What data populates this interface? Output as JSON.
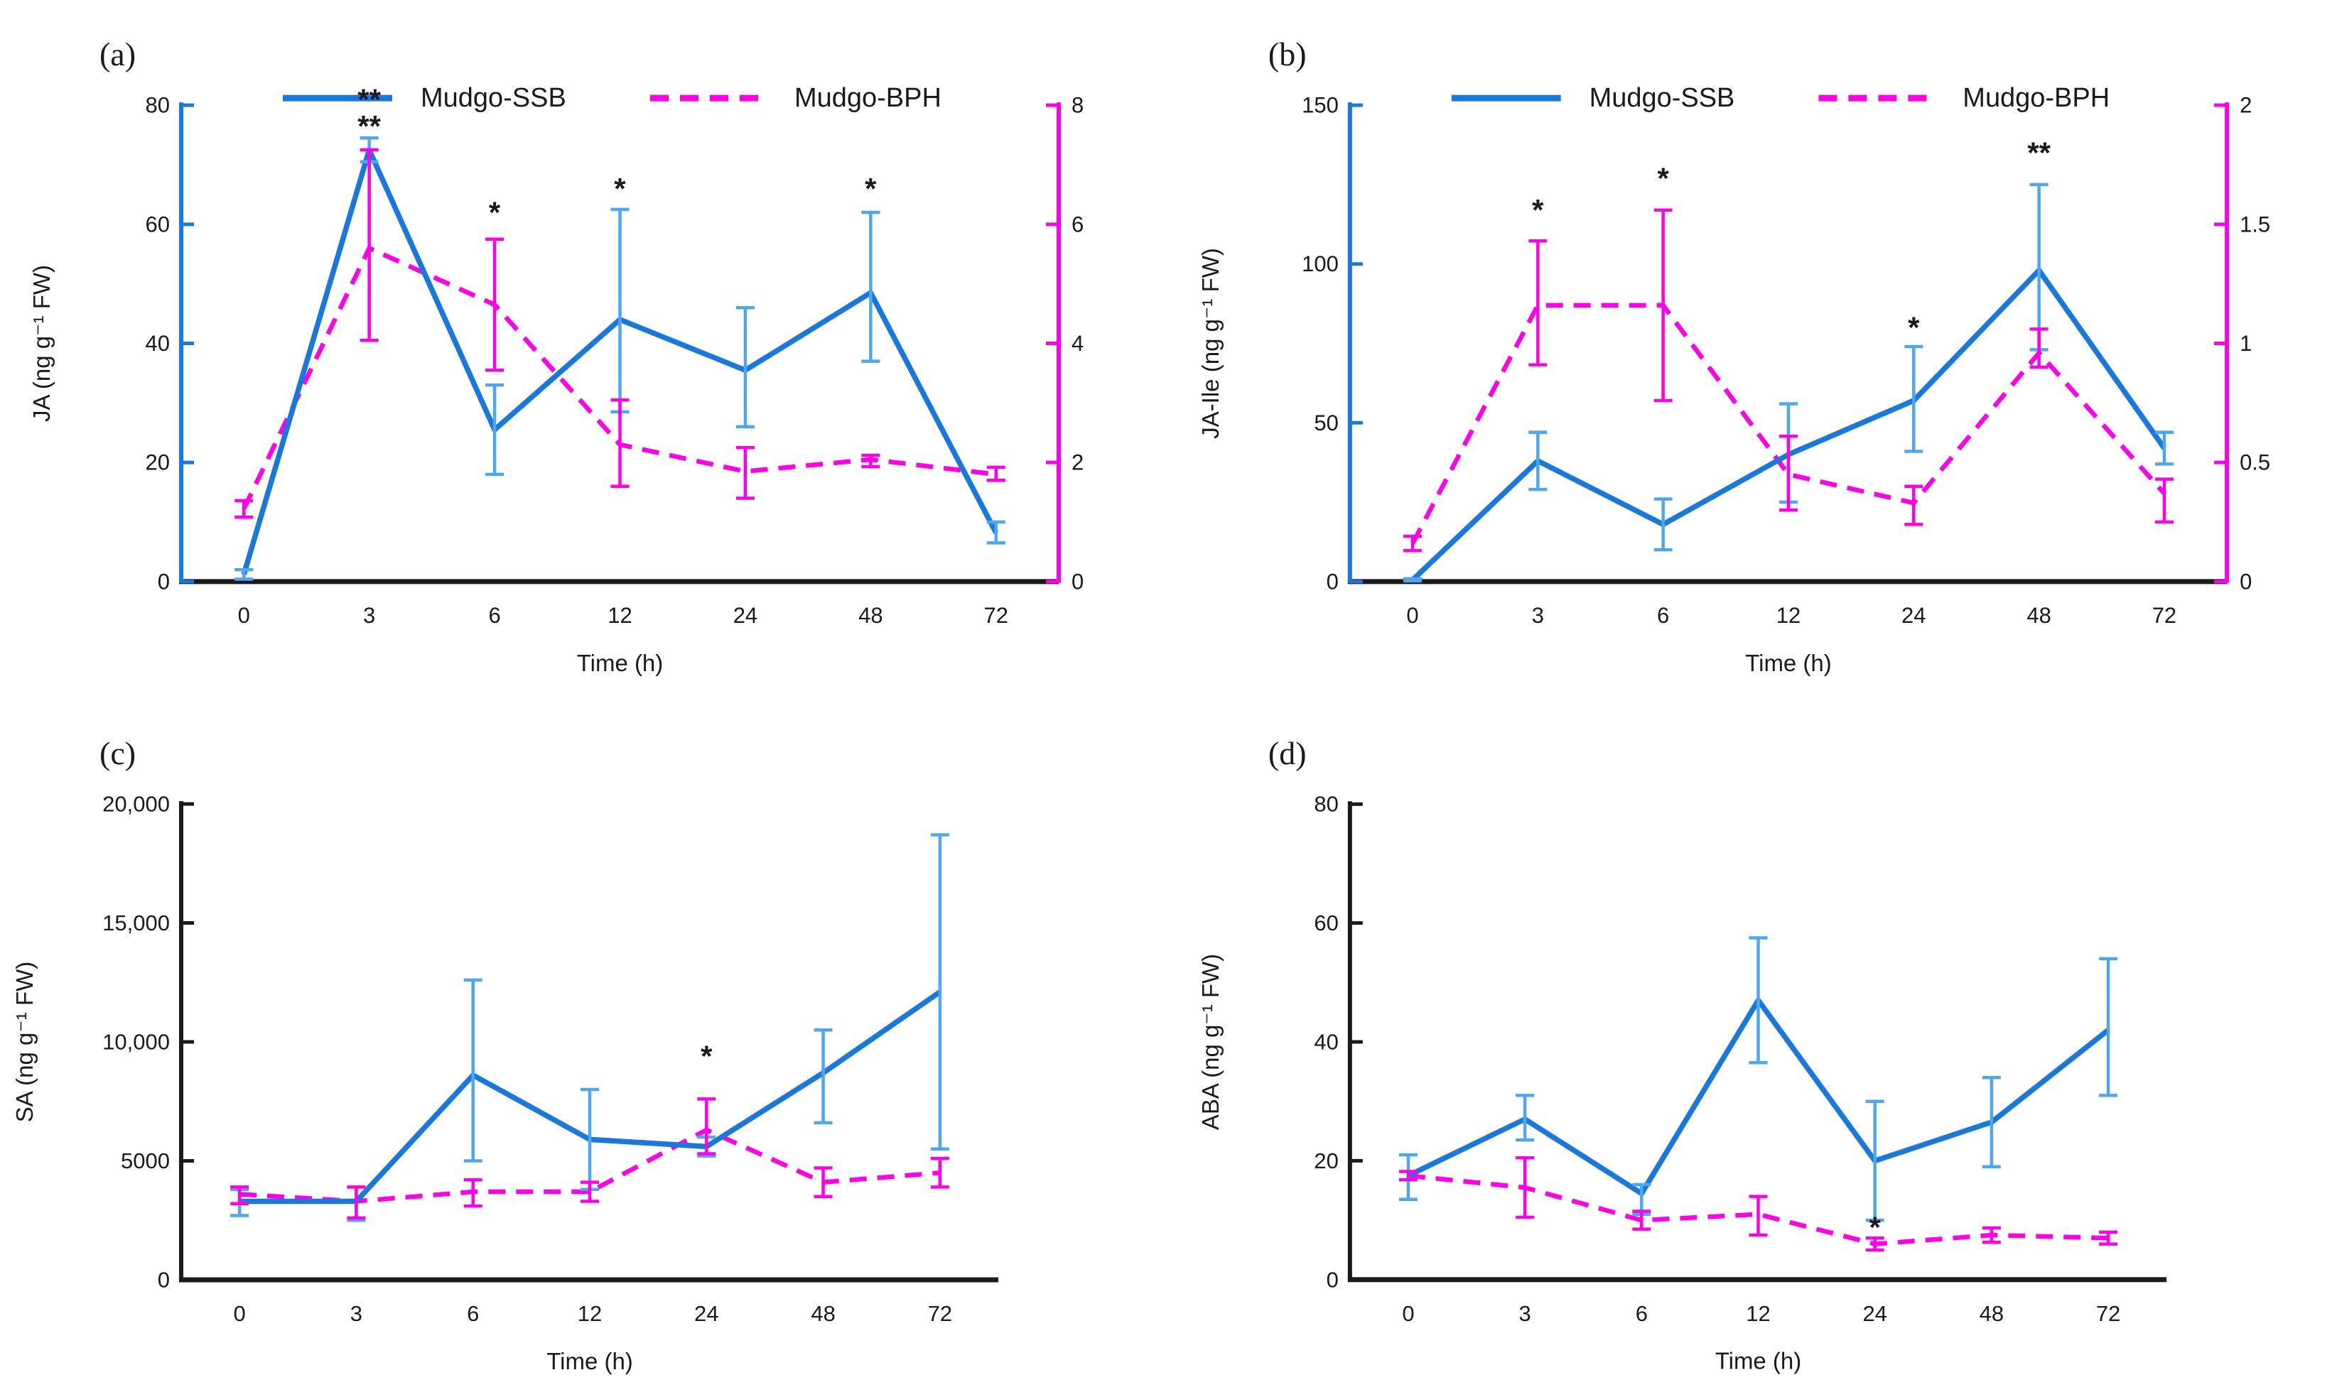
{
  "figure": {
    "description": "Four-panel phytohormone time-course figure",
    "panel_letters": [
      "(a)",
      "(b)",
      "(c)",
      "(d)"
    ]
  },
  "legend": {
    "items": [
      {
        "id": "ssb",
        "label": "Mudgo-SSB",
        "style": "solid"
      },
      {
        "id": "bph",
        "label": "Mudgo-BPH",
        "style": "dashed"
      }
    ]
  },
  "colors": {
    "ssb": "#1878DC",
    "ssb_err": "#4FA6F0",
    "bph": "#FF00E6",
    "bph_err": "#FF00E6",
    "green_star": "#00B050",
    "axis": "#1a1a1a",
    "text": "#1a1a1a"
  },
  "chart_data": [
    {
      "type": "line",
      "panel_label": "(a)",
      "ylabel": "JA (ng g⁻¹ FW)",
      "xlabel": "Time (h)",
      "x_categories": [
        "0",
        "3",
        "6",
        "12",
        "24",
        "48",
        "72"
      ],
      "left_max": 80,
      "left_tick_vals": [
        0,
        20,
        40,
        60,
        80
      ],
      "left_tick_labels": [
        "0",
        "20",
        "40",
        "60",
        "80"
      ],
      "right_max": 8,
      "right_tick_vals": [
        0,
        2,
        4,
        6,
        8
      ],
      "right_tick_labels": [
        "0",
        "2",
        "4",
        "6",
        "8"
      ],
      "show_legend": true,
      "spine_left_color": "#1878DC",
      "ylabel_x": 70,
      "series": [
        {
          "id": "ssb",
          "name": "Mudgo-SSB",
          "axis": "left",
          "style": "solid",
          "values": [
            1.2,
            72.5,
            25.5,
            44,
            35.5,
            48.5,
            8.2
          ],
          "err_lo": [
            0.4,
            70.5,
            18,
            28.5,
            26,
            37,
            6.5
          ],
          "err_hi": [
            2.0,
            74.5,
            33,
            62.5,
            46,
            62,
            10
          ]
        },
        {
          "id": "bph",
          "name": "Mudgo-BPH",
          "axis": "right",
          "style": "dashed",
          "values": [
            1.22,
            5.6,
            4.65,
            2.3,
            1.85,
            2.05,
            1.8
          ],
          "err_lo": [
            1.08,
            4.05,
            3.55,
            1.6,
            1.4,
            1.93,
            1.7
          ],
          "err_hi": [
            1.36,
            7.25,
            5.75,
            3.05,
            2.25,
            2.12,
            1.92
          ]
        }
      ],
      "annotations": [
        {
          "xi": 1,
          "axis": "left",
          "y": 81,
          "text": "**",
          "color": "#1878DC"
        },
        {
          "xi": 1,
          "axis": "left",
          "y": 76.5,
          "text": "**",
          "color": "#FF00E6"
        },
        {
          "xi": 2,
          "axis": "left",
          "y": 62,
          "text": "*",
          "color": "#FF00E6"
        },
        {
          "xi": 3,
          "axis": "left",
          "y": 66,
          "text": "*",
          "color": "#1878DC"
        },
        {
          "xi": 5,
          "axis": "left",
          "y": 66,
          "text": "*",
          "color": "#1878DC"
        }
      ]
    },
    {
      "type": "line",
      "panel_label": "(b)",
      "ylabel": "JA-Ile (ng g⁻¹ FW)",
      "xlabel": "Time (h)",
      "x_categories": [
        "0",
        "3",
        "6",
        "12",
        "24",
        "48",
        "72"
      ],
      "left_max": 150,
      "left_tick_vals": [
        0,
        50,
        100,
        150
      ],
      "left_tick_labels": [
        "0",
        "50",
        "100",
        "150"
      ],
      "right_max": 2,
      "right_tick_vals": [
        0,
        0.5,
        1,
        1.5,
        2
      ],
      "right_tick_labels": [
        "0",
        "0.5",
        "1",
        "1.5",
        "2"
      ],
      "show_legend": true,
      "spine_left_color": "#1878DC",
      "ylabel_x": 70,
      "series": [
        {
          "id": "ssb",
          "name": "Mudgo-SSB",
          "axis": "left",
          "style": "solid",
          "values": [
            0.5,
            38,
            18,
            40,
            57,
            98,
            42
          ],
          "err_lo": [
            0.2,
            29,
            10,
            25,
            41,
            73,
            37
          ],
          "err_hi": [
            0.9,
            47,
            26,
            56,
            74,
            125,
            47
          ]
        },
        {
          "id": "bph",
          "name": "Mudgo-BPH",
          "axis": "right",
          "style": "dashed",
          "values": [
            0.16,
            1.16,
            1.16,
            0.45,
            0.33,
            0.96,
            0.37
          ],
          "err_lo": [
            0.13,
            0.91,
            0.76,
            0.3,
            0.24,
            0.9,
            0.25
          ],
          "err_hi": [
            0.19,
            1.43,
            1.56,
            0.61,
            0.4,
            1.06,
            0.43
          ]
        }
      ],
      "annotations": [
        {
          "xi": 1,
          "axis": "left",
          "y": 117,
          "text": "*",
          "color": "#FF00E6"
        },
        {
          "xi": 2,
          "axis": "left",
          "y": 127,
          "text": "*",
          "color": "#FF00E6"
        },
        {
          "xi": 4,
          "axis": "left",
          "y": 80,
          "text": "*",
          "color": "#00B050"
        },
        {
          "xi": 5,
          "axis": "left",
          "y": 135,
          "text": "**",
          "color": "#1878DC"
        }
      ]
    },
    {
      "type": "line",
      "panel_label": "(c)",
      "ylabel": "SA (ng g⁻¹ FW)",
      "xlabel": "Time (h)",
      "x_categories": [
        "0",
        "3",
        "6",
        "12",
        "24",
        "48",
        "72"
      ],
      "left_max": 20000,
      "left_tick_vals": [
        0,
        5000,
        10000,
        15000,
        20000
      ],
      "left_tick_labels": [
        "0",
        "5000",
        "10,000",
        "15,000",
        "20,000"
      ],
      "right_max": null,
      "right_tick_vals": null,
      "right_tick_labels": null,
      "show_legend": false,
      "spine_left_color": "#1a1a1a",
      "ylabel_x": 46,
      "series": [
        {
          "id": "ssb",
          "name": "Mudgo-SSB",
          "axis": "left",
          "style": "solid",
          "values": [
            3300,
            3300,
            8600,
            5900,
            5600,
            8700,
            12100
          ],
          "err_lo": [
            2700,
            2500,
            5000,
            3800,
            5200,
            6600,
            5500
          ],
          "err_hi": [
            3800,
            3900,
            12600,
            8000,
            6000,
            10500,
            18700
          ]
        },
        {
          "id": "bph",
          "name": "Mudgo-BPH",
          "axis": "left",
          "style": "dashed",
          "values": [
            3600,
            3300,
            3700,
            3700,
            6300,
            4100,
            4500
          ],
          "err_lo": [
            3200,
            2600,
            3100,
            3300,
            5300,
            3500,
            3900
          ],
          "err_hi": [
            3900,
            3900,
            4200,
            4100,
            7600,
            4700,
            5100
          ]
        }
      ],
      "annotations": [
        {
          "xi": 4,
          "axis": "left",
          "y": 9400,
          "text": "*",
          "color": "#FF00E6"
        }
      ]
    },
    {
      "type": "line",
      "panel_label": "(d)",
      "ylabel": "ABA (ng g⁻¹ FW)",
      "xlabel": "Time (h)",
      "x_categories": [
        "0",
        "3",
        "6",
        "12",
        "24",
        "48",
        "72"
      ],
      "left_max": 80,
      "left_tick_vals": [
        0,
        20,
        40,
        60,
        80
      ],
      "left_tick_labels": [
        "0",
        "20",
        "40",
        "60",
        "80"
      ],
      "right_max": null,
      "right_tick_vals": null,
      "right_tick_labels": null,
      "show_legend": false,
      "spine_left_color": "#1a1a1a",
      "ylabel_x": 70,
      "series": [
        {
          "id": "ssb",
          "name": "Mudgo-SSB",
          "axis": "left",
          "style": "solid",
          "values": [
            17.5,
            27,
            14.5,
            47,
            20,
            26.5,
            42
          ],
          "err_lo": [
            13.5,
            23.5,
            11,
            36.5,
            10,
            19,
            31
          ],
          "err_hi": [
            21,
            31,
            16,
            57.5,
            30,
            34,
            54
          ]
        },
        {
          "id": "bph",
          "name": "Mudgo-BPH",
          "axis": "left",
          "style": "dashed",
          "values": [
            17.5,
            15.5,
            10,
            11,
            6,
            7.5,
            7
          ],
          "err_lo": [
            16.8,
            10.5,
            8.5,
            7.5,
            5,
            6.3,
            6
          ],
          "err_hi": [
            18.2,
            20.5,
            11.5,
            14,
            7,
            8.7,
            8
          ]
        }
      ],
      "annotations": [
        {
          "xi": 4,
          "axis": "left",
          "y": 8.8,
          "text": "*",
          "color": "#FF00E6"
        }
      ]
    }
  ]
}
